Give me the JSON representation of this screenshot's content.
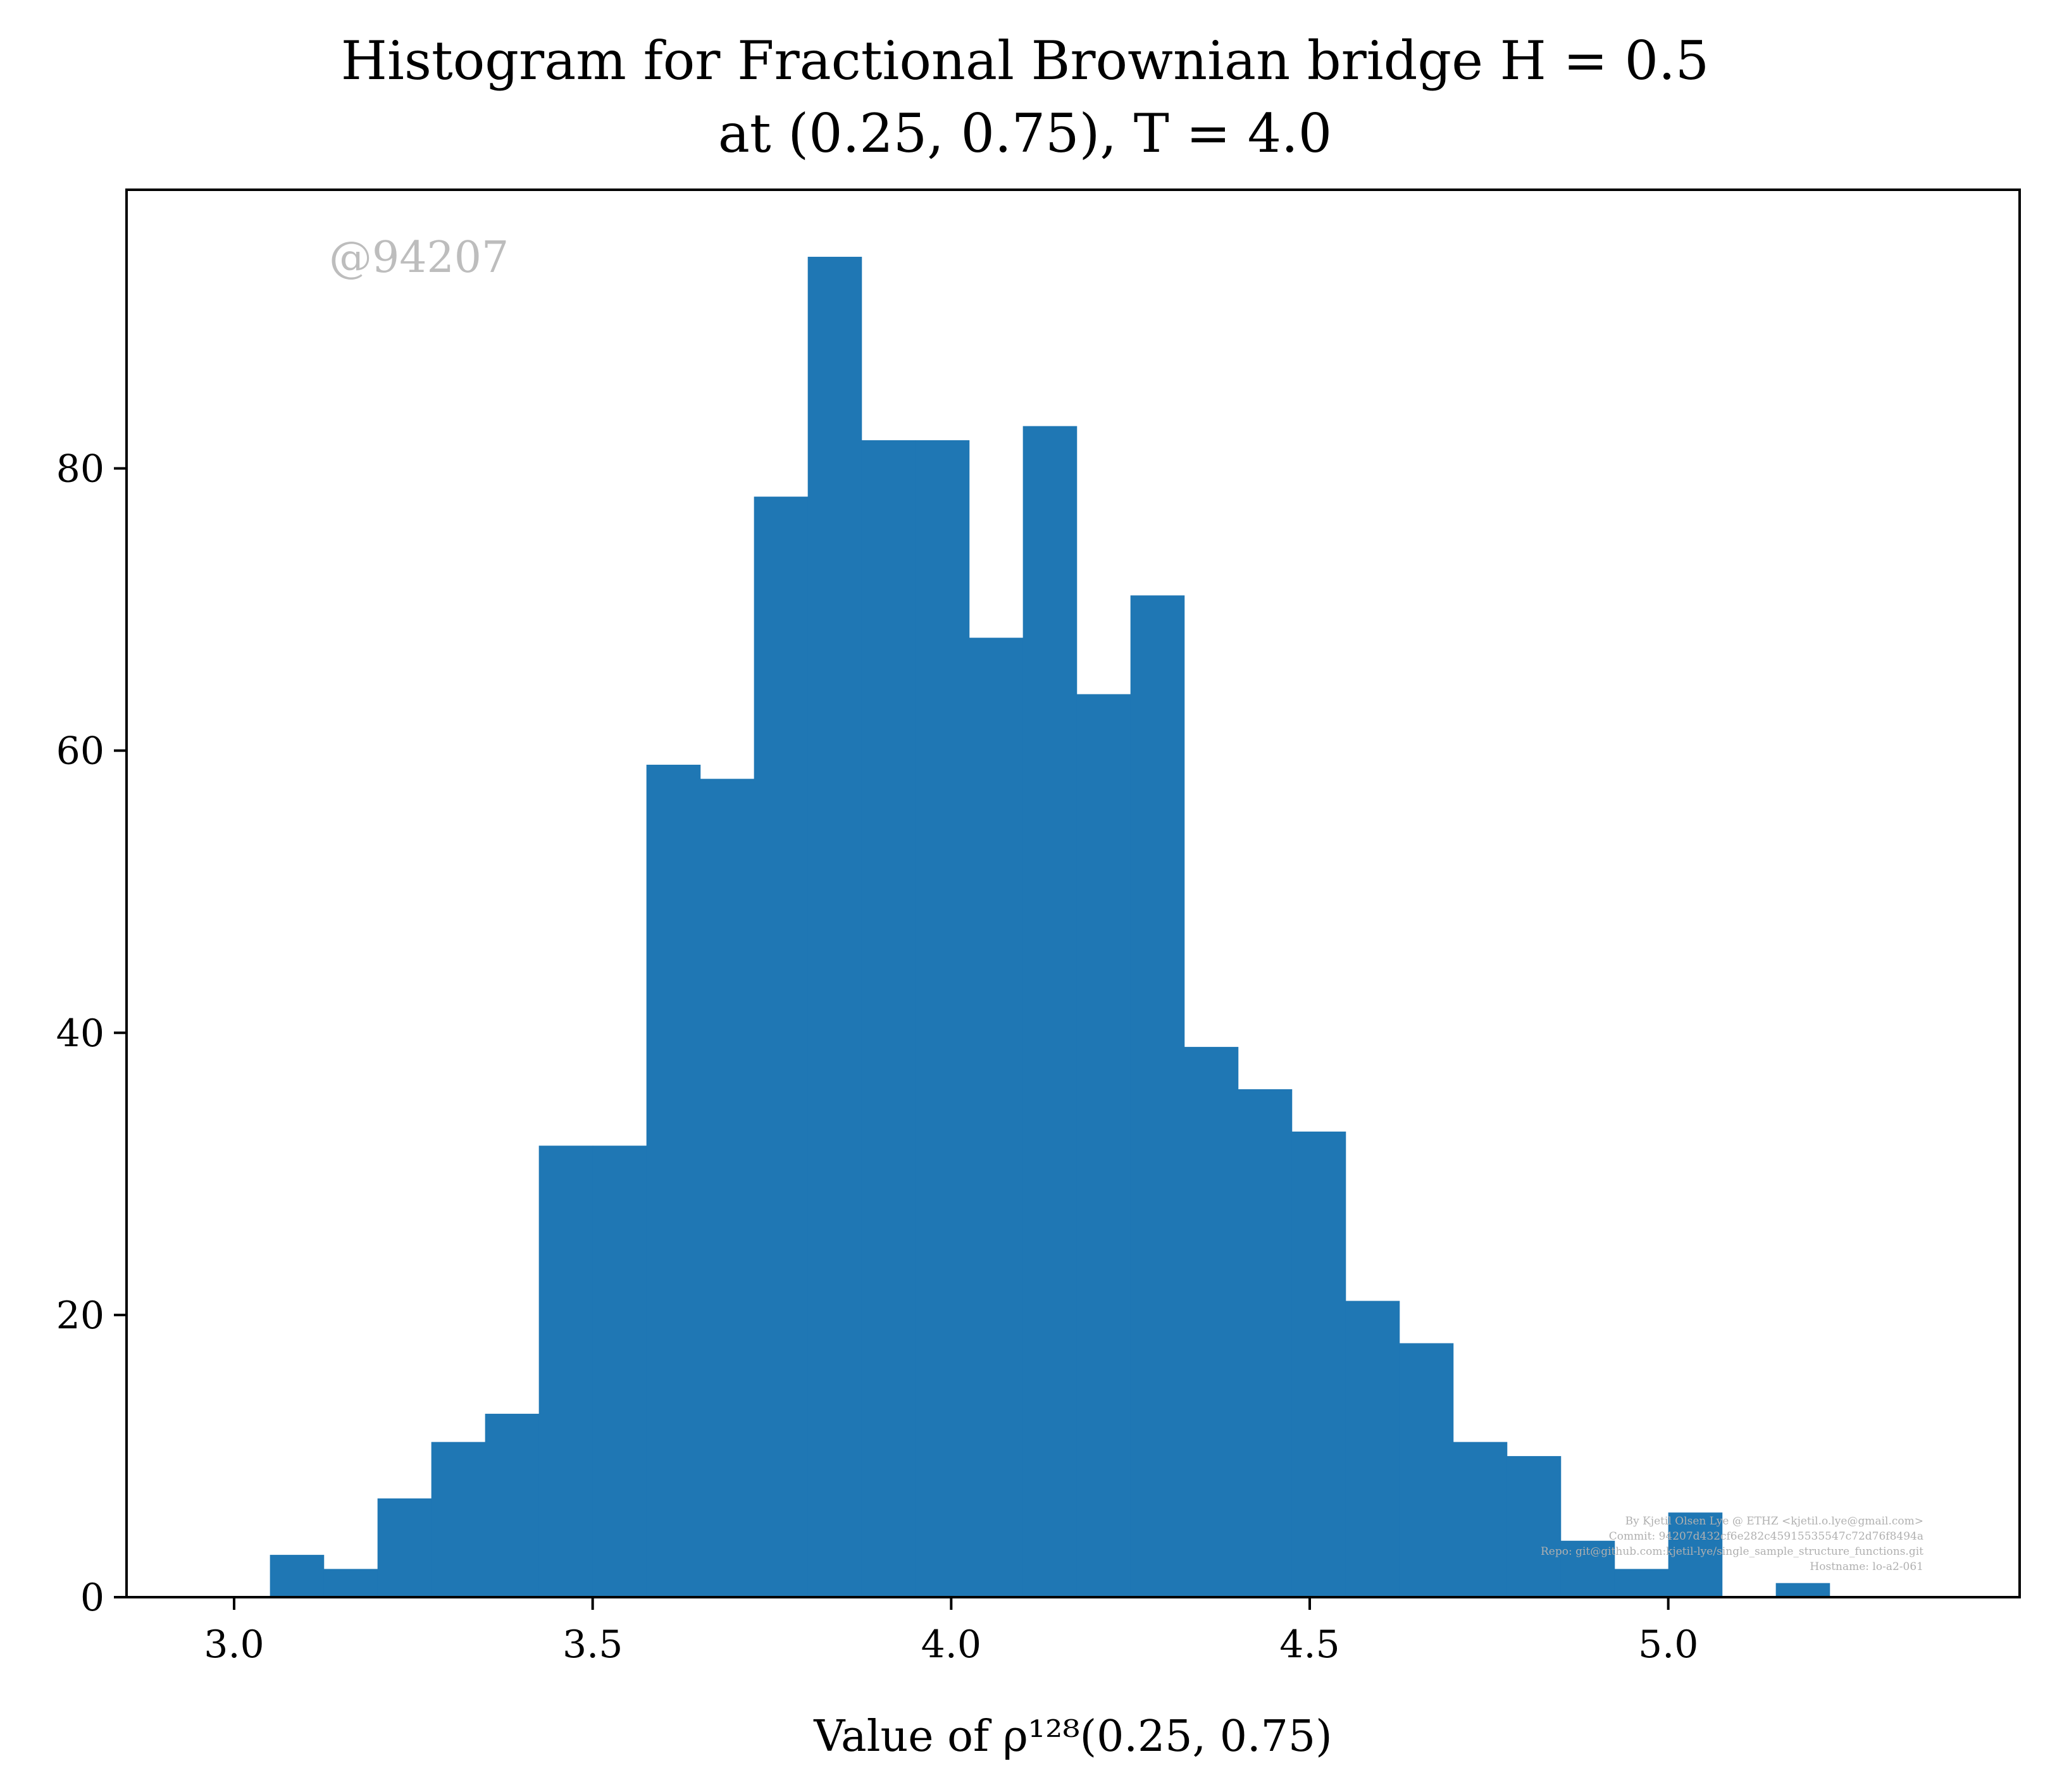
{
  "chart_data": {
    "type": "bar",
    "title_line1": "Histogram for Fractional Brownian bridge H = 0.5",
    "title_line2": "at (0.25, 0.75), T = 4.0",
    "xlabel": "Value of ρ¹²⁸(0.25, 0.75)",
    "ylabel": "",
    "xlim": [
      2.85,
      5.49
    ],
    "ylim": [
      0,
      99.75
    ],
    "xticks": [
      "3.0",
      "3.5",
      "4.0",
      "4.5",
      "5.0"
    ],
    "xtick_values": [
      3.0,
      3.5,
      4.0,
      4.5,
      5.0
    ],
    "yticks": [
      "0",
      "20",
      "40",
      "60",
      "80"
    ],
    "ytick_values": [
      0,
      20,
      40,
      60,
      80
    ],
    "bin_start": 3.05,
    "bin_width": 0.075,
    "values": [
      3,
      2,
      7,
      11,
      13,
      32,
      32,
      59,
      58,
      78,
      95,
      82,
      82,
      68,
      83,
      64,
      71,
      39,
      36,
      33,
      21,
      18,
      11,
      10,
      4,
      2,
      6,
      0,
      1
    ],
    "bar_color": "#1f77b4",
    "grid": false,
    "legend": "none"
  },
  "watermark": "@94207",
  "credits": [
    "By Kjetil Olsen Lye @ ETHZ <kjetil.o.lye@gmail.com>",
    "Commit: 94207d432cf6e282c45915535547c72d76f8494a",
    "Repo: git@github.com:kjetil-lye/single_sample_structure_functions.git",
    "Hostname: lo-a2-061"
  ]
}
